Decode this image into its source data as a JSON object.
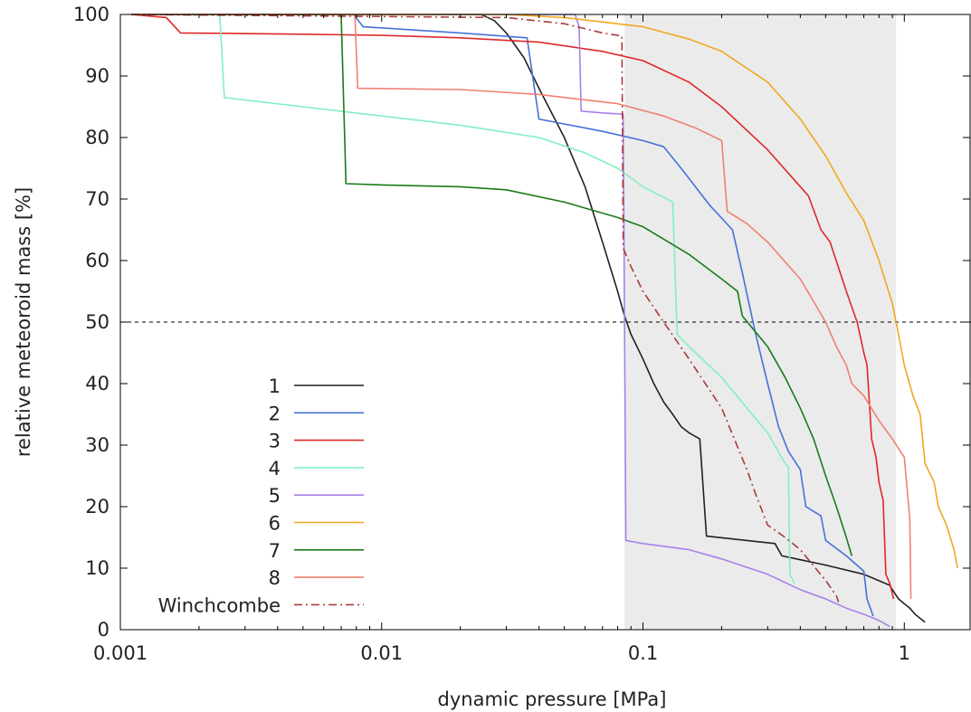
{
  "chart_data": {
    "type": "line",
    "title": "",
    "xlabel": "dynamic pressure [MPa]",
    "ylabel": "relative meteoroid mass [%]",
    "x_scale": "log",
    "xlim": [
      0.001,
      1.8
    ],
    "ylim": [
      0,
      100
    ],
    "x_ticks": [
      0.001,
      0.01,
      0.1,
      1
    ],
    "x_tick_labels": [
      "0.001",
      "0.01",
      "0.1",
      "1"
    ],
    "y_ticks": [
      0,
      10,
      20,
      30,
      40,
      50,
      60,
      70,
      80,
      90,
      100
    ],
    "y_tick_labels": [
      "0",
      "10",
      "20",
      "30",
      "40",
      "50",
      "60",
      "70",
      "80",
      "90",
      "100"
    ],
    "grid": false,
    "legend_position": "lower-left",
    "shaded_band": {
      "x": [
        0.085,
        0.93
      ],
      "color": "#ebebeb"
    },
    "reference_line": {
      "y": 50,
      "style": "dashed",
      "color": "#000000"
    },
    "series": [
      {
        "name": "1",
        "color": "#222222",
        "dash": "solid",
        "points": [
          [
            0.0011,
            100
          ],
          [
            0.024,
            100
          ],
          [
            0.027,
            99
          ],
          [
            0.03,
            97
          ],
          [
            0.035,
            93
          ],
          [
            0.04,
            88
          ],
          [
            0.05,
            80
          ],
          [
            0.06,
            72
          ],
          [
            0.07,
            63
          ],
          [
            0.08,
            55
          ],
          [
            0.085,
            51
          ],
          [
            0.09,
            48
          ],
          [
            0.1,
            44
          ],
          [
            0.11,
            40
          ],
          [
            0.12,
            37
          ],
          [
            0.13,
            35
          ],
          [
            0.14,
            33
          ],
          [
            0.15,
            32
          ],
          [
            0.165,
            31
          ],
          [
            0.175,
            15.2
          ],
          [
            0.25,
            14.5
          ],
          [
            0.32,
            14
          ],
          [
            0.34,
            12
          ],
          [
            0.5,
            10.5
          ],
          [
            0.7,
            9
          ],
          [
            0.88,
            7.2
          ],
          [
            0.9,
            6.5
          ],
          [
            0.95,
            5
          ],
          [
            1.0,
            4.2
          ],
          [
            1.05,
            3.5
          ],
          [
            1.1,
            2.5
          ],
          [
            1.2,
            1.2
          ]
        ]
      },
      {
        "name": "2",
        "color": "#4472d8",
        "dash": "solid",
        "points": [
          [
            0.0011,
            100
          ],
          [
            0.0078,
            100
          ],
          [
            0.0085,
            98
          ],
          [
            0.02,
            97
          ],
          [
            0.036,
            96.2
          ],
          [
            0.04,
            83
          ],
          [
            0.07,
            81
          ],
          [
            0.1,
            79.5
          ],
          [
            0.12,
            78.5
          ],
          [
            0.14,
            75
          ],
          [
            0.18,
            69
          ],
          [
            0.22,
            65
          ],
          [
            0.24,
            58
          ],
          [
            0.27,
            48
          ],
          [
            0.3,
            40
          ],
          [
            0.33,
            33
          ],
          [
            0.36,
            29
          ],
          [
            0.4,
            26
          ],
          [
            0.42,
            20
          ],
          [
            0.48,
            18.5
          ],
          [
            0.5,
            14.5
          ],
          [
            0.6,
            12
          ],
          [
            0.7,
            9.5
          ],
          [
            0.72,
            5
          ],
          [
            0.76,
            2.2
          ]
        ]
      },
      {
        "name": "3",
        "color": "#e02828",
        "dash": "solid",
        "points": [
          [
            0.0011,
            100
          ],
          [
            0.0015,
            99.5
          ],
          [
            0.0017,
            97
          ],
          [
            0.005,
            96.8
          ],
          [
            0.01,
            96.6
          ],
          [
            0.02,
            96.2
          ],
          [
            0.04,
            95.5
          ],
          [
            0.07,
            94
          ],
          [
            0.1,
            92.5
          ],
          [
            0.15,
            89
          ],
          [
            0.2,
            85
          ],
          [
            0.3,
            78
          ],
          [
            0.43,
            70.5
          ],
          [
            0.48,
            65
          ],
          [
            0.52,
            63
          ],
          [
            0.6,
            55
          ],
          [
            0.66,
            50
          ],
          [
            0.7,
            45
          ],
          [
            0.72,
            43
          ],
          [
            0.75,
            31
          ],
          [
            0.78,
            28
          ],
          [
            0.8,
            24
          ],
          [
            0.83,
            21
          ],
          [
            0.85,
            9
          ],
          [
            0.88,
            7.5
          ],
          [
            0.91,
            5
          ]
        ]
      },
      {
        "name": "4",
        "color": "#80f0c0",
        "dash": "solid",
        "points": [
          [
            0.0011,
            100
          ],
          [
            0.0024,
            100
          ],
          [
            0.0025,
            86.5
          ],
          [
            0.005,
            85
          ],
          [
            0.01,
            83.5
          ],
          [
            0.02,
            82
          ],
          [
            0.04,
            80
          ],
          [
            0.06,
            77.5
          ],
          [
            0.08,
            75
          ],
          [
            0.1,
            72
          ],
          [
            0.13,
            69.5
          ],
          [
            0.135,
            48
          ],
          [
            0.15,
            46
          ],
          [
            0.2,
            41
          ],
          [
            0.25,
            36
          ],
          [
            0.3,
            32
          ],
          [
            0.35,
            27
          ],
          [
            0.36,
            26.5
          ],
          [
            0.365,
            9
          ],
          [
            0.38,
            7.5
          ]
        ]
      },
      {
        "name": "5",
        "color": "#a880e8",
        "dash": "solid",
        "points": [
          [
            0.0011,
            100
          ],
          [
            0.055,
            100
          ],
          [
            0.057,
            98
          ],
          [
            0.058,
            84.3
          ],
          [
            0.07,
            84
          ],
          [
            0.084,
            83.8
          ],
          [
            0.086,
            14.5
          ],
          [
            0.1,
            14
          ],
          [
            0.15,
            13
          ],
          [
            0.2,
            11.5
          ],
          [
            0.3,
            9
          ],
          [
            0.4,
            6.5
          ],
          [
            0.5,
            5
          ],
          [
            0.6,
            3.5
          ],
          [
            0.7,
            2.5
          ],
          [
            0.8,
            1.5
          ],
          [
            0.88,
            0.5
          ]
        ]
      },
      {
        "name": "6",
        "color": "#f0a820",
        "dash": "solid",
        "points": [
          [
            0.0011,
            100
          ],
          [
            0.03,
            100
          ],
          [
            0.05,
            99.5
          ],
          [
            0.1,
            98
          ],
          [
            0.15,
            96
          ],
          [
            0.2,
            94
          ],
          [
            0.3,
            89
          ],
          [
            0.4,
            83
          ],
          [
            0.5,
            77
          ],
          [
            0.6,
            71
          ],
          [
            0.7,
            66.5
          ],
          [
            0.8,
            60
          ],
          [
            0.9,
            53
          ],
          [
            0.95,
            48
          ],
          [
            1.0,
            43
          ],
          [
            1.08,
            38
          ],
          [
            1.15,
            35
          ],
          [
            1.2,
            27
          ],
          [
            1.3,
            24
          ],
          [
            1.35,
            20
          ],
          [
            1.45,
            17
          ],
          [
            1.55,
            13
          ],
          [
            1.6,
            10
          ]
        ]
      },
      {
        "name": "7",
        "color": "#1a7a1a",
        "dash": "solid",
        "points": [
          [
            0.0011,
            100
          ],
          [
            0.007,
            100
          ],
          [
            0.0073,
            72.5
          ],
          [
            0.01,
            72.3
          ],
          [
            0.02,
            72
          ],
          [
            0.03,
            71.5
          ],
          [
            0.05,
            69.5
          ],
          [
            0.08,
            67
          ],
          [
            0.1,
            65.5
          ],
          [
            0.15,
            61
          ],
          [
            0.2,
            57
          ],
          [
            0.23,
            55
          ],
          [
            0.24,
            51
          ],
          [
            0.3,
            46
          ],
          [
            0.35,
            41
          ],
          [
            0.4,
            36
          ],
          [
            0.45,
            31
          ],
          [
            0.5,
            25
          ],
          [
            0.55,
            20
          ],
          [
            0.6,
            15
          ],
          [
            0.63,
            12
          ]
        ]
      },
      {
        "name": "8",
        "color": "#f08070",
        "dash": "solid",
        "points": [
          [
            0.0011,
            100
          ],
          [
            0.0079,
            100
          ],
          [
            0.0081,
            88
          ],
          [
            0.02,
            87.8
          ],
          [
            0.04,
            87
          ],
          [
            0.08,
            85.5
          ],
          [
            0.12,
            83.5
          ],
          [
            0.16,
            81.5
          ],
          [
            0.2,
            79.5
          ],
          [
            0.21,
            68
          ],
          [
            0.25,
            66
          ],
          [
            0.3,
            63
          ],
          [
            0.4,
            57
          ],
          [
            0.5,
            50
          ],
          [
            0.55,
            46
          ],
          [
            0.6,
            43
          ],
          [
            0.63,
            40
          ],
          [
            0.7,
            38
          ],
          [
            0.8,
            34
          ],
          [
            0.9,
            31
          ],
          [
            1.0,
            28
          ],
          [
            1.05,
            18
          ],
          [
            1.06,
            5
          ]
        ]
      },
      {
        "name": "Winchcombe",
        "color": "#a83c3c",
        "dash": "dashdot",
        "points": [
          [
            0.0011,
            100
          ],
          [
            0.03,
            99.5
          ],
          [
            0.05,
            98.5
          ],
          [
            0.07,
            97
          ],
          [
            0.083,
            96.5
          ],
          [
            0.084,
            62
          ],
          [
            0.09,
            59
          ],
          [
            0.1,
            55
          ],
          [
            0.12,
            50
          ],
          [
            0.15,
            44
          ],
          [
            0.2,
            36
          ],
          [
            0.25,
            26
          ],
          [
            0.27,
            22
          ],
          [
            0.3,
            17
          ],
          [
            0.35,
            15
          ],
          [
            0.4,
            13
          ],
          [
            0.5,
            8
          ],
          [
            0.55,
            5.5
          ],
          [
            0.56,
            4.5
          ]
        ]
      }
    ]
  }
}
